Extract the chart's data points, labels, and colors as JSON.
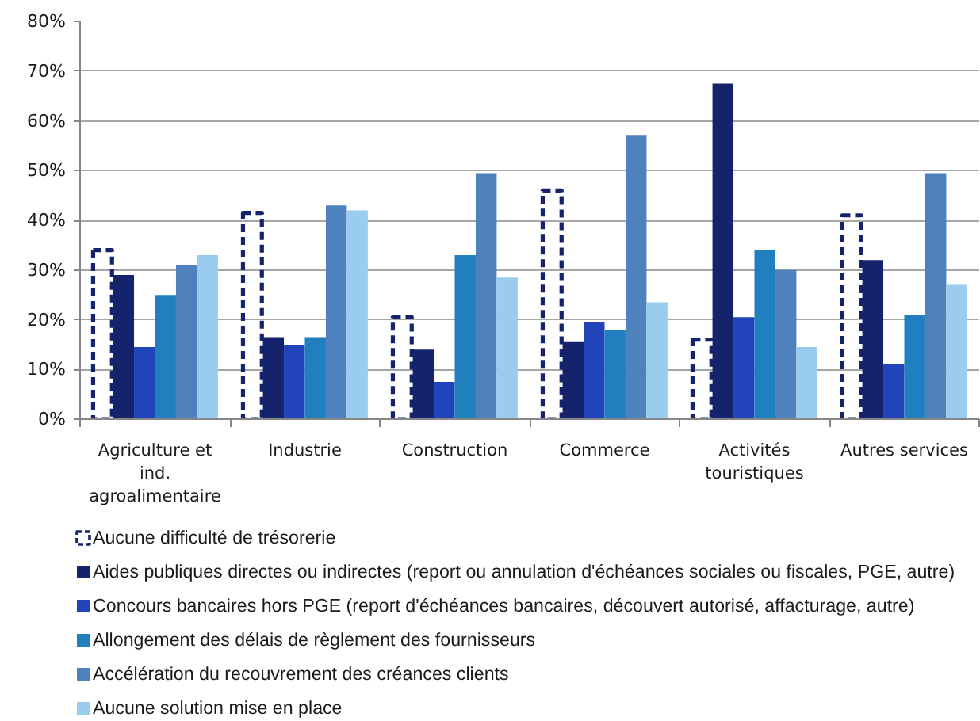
{
  "chart_data": {
    "type": "bar",
    "categories": [
      "Agriculture et ind. agroalimentaire",
      "Industrie",
      "Construction",
      "Commerce",
      "Activités touristiques",
      "Autres services"
    ],
    "series": [
      {
        "name": "Aucune difficulté de trésorerie",
        "color": "#14236b",
        "line_style": "dashed",
        "values": [
          34,
          41.5,
          20.5,
          46,
          16,
          41
        ]
      },
      {
        "name": "Aides publiques directes ou indirectes (report ou annulation d'échéances sociales ou fiscales, PGE, autre)",
        "color": "#14236b",
        "values": [
          29,
          16.5,
          14,
          15.5,
          67.5,
          32
        ]
      },
      {
        "name": "Concours bancaires hors PGE (report d'échéances bancaires, découvert autorisé, affacturage, autre)",
        "color": "#2144bb",
        "values": [
          14.5,
          15,
          7.5,
          19.5,
          20.5,
          11
        ]
      },
      {
        "name": "Allongement des délais de règlement des fournisseurs",
        "color": "#1f7fbf",
        "values": [
          25,
          16.5,
          33,
          18,
          34,
          21
        ]
      },
      {
        "name": "Accélération du recouvrement des créances clients",
        "color": "#4f81bd",
        "values": [
          31,
          43,
          49.5,
          57,
          30,
          49.5
        ]
      },
      {
        "name": "Aucune solution mise en place",
        "color": "#99ccee",
        "values": [
          33,
          42,
          28.5,
          23.5,
          14.5,
          27
        ]
      }
    ],
    "ylim": [
      0,
      80
    ],
    "yticks": [
      {
        "value": 0,
        "label": "0%"
      },
      {
        "value": 10,
        "label": "10%"
      },
      {
        "value": 20,
        "label": "20%"
      },
      {
        "value": 30,
        "label": "30%"
      },
      {
        "value": 40,
        "label": "40%"
      },
      {
        "value": 50,
        "label": "50%"
      },
      {
        "value": 60,
        "label": "60%"
      },
      {
        "value": 70,
        "label": "70%"
      },
      {
        "value": 80,
        "label": "80%"
      }
    ],
    "grid": "y",
    "legend": "bottom"
  }
}
